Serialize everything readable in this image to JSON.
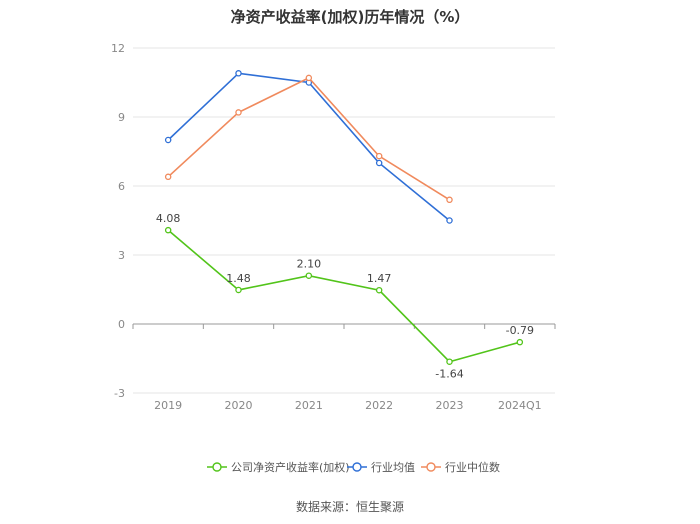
{
  "title": "净资产收益率(加权)历年情况（%）",
  "source": "数据来源：恒生聚源",
  "chart_data": {
    "type": "line",
    "categories": [
      "2019",
      "2020",
      "2021",
      "2022",
      "2023",
      "2024Q1"
    ],
    "ylim": [
      -3,
      12
    ],
    "yticks": [
      "-3",
      "0",
      "3",
      "6",
      "9",
      "12"
    ],
    "grid": true,
    "legend_position": "bottom",
    "series": [
      {
        "name": "公司净资产收益率(加权)",
        "color": "#52c41a",
        "values": [
          4.08,
          1.48,
          2.1,
          1.47,
          -1.64,
          -0.79
        ],
        "labels": [
          "4.08",
          "1.48",
          "2.10",
          "1.47",
          "-1.64",
          "-0.79"
        ]
      },
      {
        "name": "行业均值",
        "color": "#2f6fd6",
        "values": [
          8.0,
          10.9,
          10.5,
          7.0,
          4.5,
          null
        ]
      },
      {
        "name": "行业中位数",
        "color": "#f08a5d",
        "values": [
          6.4,
          9.2,
          10.7,
          7.3,
          5.4,
          null
        ]
      }
    ]
  }
}
